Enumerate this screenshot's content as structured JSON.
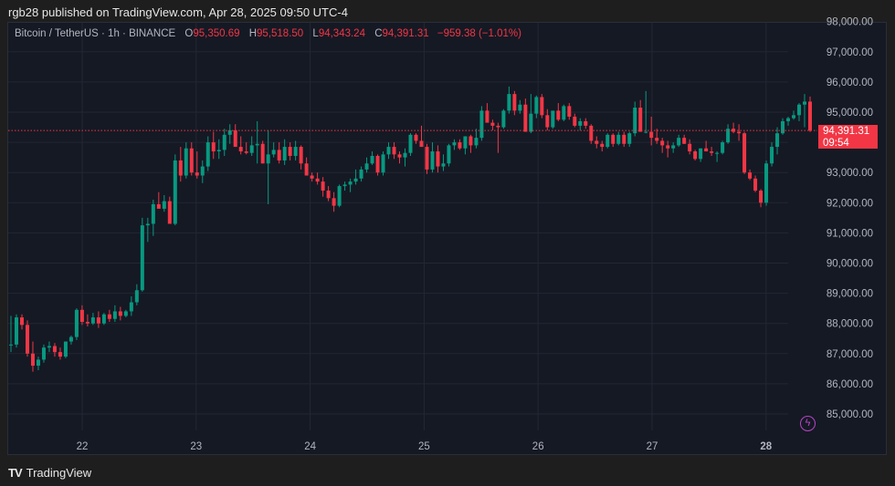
{
  "header": {
    "published_text": "rgb28 published on TradingView.com, Apr 28, 2025 09:50 UTC-4"
  },
  "legend": {
    "symbol": "Bitcoin / TetherUS · 1h · BINANCE",
    "o_label": "O",
    "o_value": "95,350.69",
    "h_label": "H",
    "h_value": "95,518.50",
    "l_label": "L",
    "l_value": "94,343.24",
    "c_label": "C",
    "c_value": "94,391.31",
    "change": "−959.38 (−1.01%)"
  },
  "price_label": {
    "price": "94,391.31",
    "countdown": "09:54"
  },
  "footer": {
    "logo_glyph": "TV",
    "brand": "TradingView"
  },
  "colors": {
    "up": "#089981",
    "down": "#f23645",
    "background": "#151924",
    "grid": "#232733",
    "text": "#b2b5be",
    "alert_icon": "#b845c8"
  },
  "icons": {
    "alert": "lightning-bolt-icon"
  },
  "chart_data": {
    "type": "candlestick",
    "title": "Bitcoin / TetherUS · 1h · BINANCE",
    "xlabel": "",
    "ylabel": "",
    "x_ticks": [
      "22",
      "23",
      "24",
      "25",
      "26",
      "27",
      "28"
    ],
    "y_ticks": [
      "85,000.00",
      "86,000.00",
      "87,000.00",
      "88,000.00",
      "89,000.00",
      "90,000.00",
      "91,000.00",
      "92,000.00",
      "93,000.00",
      "94,000.00",
      "95,000.00",
      "96,000.00",
      "97,000.00",
      "98,000.00"
    ],
    "ylim": [
      84100,
      98100
    ],
    "grid": true,
    "last_price": 94391.31,
    "interval": "1h",
    "candles_ohlc_approx": [
      [
        87300,
        88250,
        87050,
        87300
      ],
      [
        87300,
        88300,
        87200,
        88200
      ],
      [
        88200,
        88300,
        87800,
        87950
      ],
      [
        87950,
        88100,
        86900,
        87000
      ],
      [
        87000,
        87400,
        86400,
        86600
      ],
      [
        86600,
        86900,
        86450,
        86800
      ],
      [
        86800,
        87300,
        86700,
        87200
      ],
      [
        87200,
        87400,
        87050,
        87250
      ],
      [
        87250,
        87350,
        86900,
        87050
      ],
      [
        87050,
        87200,
        86800,
        86900
      ],
      [
        86900,
        87400,
        86850,
        87400
      ],
      [
        87400,
        87600,
        87300,
        87550
      ],
      [
        87550,
        88500,
        87450,
        88450
      ],
      [
        88450,
        88600,
        87950,
        88050
      ],
      [
        88050,
        88300,
        87900,
        88000
      ],
      [
        88000,
        88350,
        87950,
        88200
      ],
      [
        88200,
        88400,
        87850,
        88000
      ],
      [
        88000,
        88350,
        87950,
        88300
      ],
      [
        88300,
        88450,
        88050,
        88150
      ],
      [
        88150,
        88600,
        88050,
        88400
      ],
      [
        88400,
        88550,
        88100,
        88250
      ],
      [
        88250,
        88450,
        88200,
        88400
      ],
      [
        88400,
        88900,
        88250,
        88700
      ],
      [
        88700,
        89300,
        88600,
        89100
      ],
      [
        89100,
        91500,
        89050,
        91250
      ],
      [
        91250,
        91500,
        90700,
        91300
      ],
      [
        91300,
        92100,
        90900,
        91950
      ],
      [
        91950,
        92350,
        91800,
        91800
      ],
      [
        91800,
        92250,
        91700,
        92050
      ],
      [
        92050,
        92200,
        91450,
        91300
      ],
      [
        91300,
        93600,
        91250,
        93400
      ],
      [
        93400,
        93850,
        92700,
        92900
      ],
      [
        92900,
        94000,
        92800,
        93800
      ],
      [
        93800,
        94000,
        92900,
        93000
      ],
      [
        93000,
        93700,
        92800,
        92900
      ],
      [
        92900,
        93400,
        92650,
        93200
      ],
      [
        93200,
        94200,
        93050,
        94000
      ],
      [
        94000,
        94350,
        93450,
        93700
      ],
      [
        93700,
        94100,
        93450,
        93750
      ],
      [
        93750,
        94450,
        93550,
        94250
      ],
      [
        94250,
        94600,
        93950,
        94400
      ],
      [
        94400,
        94600,
        93850,
        93850
      ],
      [
        93850,
        94200,
        93600,
        93700
      ],
      [
        93700,
        94000,
        93600,
        93650
      ],
      [
        93650,
        94200,
        93550,
        93900
      ],
      [
        93900,
        94700,
        93300,
        93950
      ],
      [
        93950,
        94050,
        93300,
        93300
      ],
      [
        93300,
        94400,
        91950,
        93600
      ],
      [
        93600,
        94000,
        93500,
        93750
      ],
      [
        93750,
        94000,
        93300,
        93400
      ],
      [
        93400,
        94100,
        93250,
        93850
      ],
      [
        93850,
        94000,
        93400,
        93550
      ],
      [
        93550,
        94050,
        93400,
        93850
      ],
      [
        93850,
        93900,
        93100,
        93300
      ],
      [
        93300,
        93500,
        92900,
        92900
      ],
      [
        92900,
        93000,
        92700,
        92800
      ],
      [
        92800,
        93000,
        92600,
        92700
      ],
      [
        92700,
        92850,
        92200,
        92400
      ],
      [
        92400,
        92550,
        92050,
        92150
      ],
      [
        92150,
        92350,
        91700,
        91900
      ],
      [
        91900,
        92600,
        91850,
        92550
      ],
      [
        92550,
        92700,
        92400,
        92600
      ],
      [
        92600,
        92800,
        92350,
        92700
      ],
      [
        92700,
        93100,
        92600,
        92800
      ],
      [
        92800,
        93200,
        92700,
        93100
      ],
      [
        93100,
        93500,
        93000,
        93300
      ],
      [
        93300,
        93700,
        93250,
        93550
      ],
      [
        93550,
        93600,
        92900,
        93000
      ],
      [
        93000,
        93700,
        92900,
        93600
      ],
      [
        93600,
        94000,
        93450,
        93850
      ],
      [
        93850,
        94000,
        93450,
        93600
      ],
      [
        93600,
        93700,
        93300,
        93500
      ],
      [
        93500,
        93800,
        93200,
        93650
      ],
      [
        93650,
        94300,
        93550,
        94250
      ],
      [
        94250,
        94300,
        93950,
        94050
      ],
      [
        94050,
        94550,
        93850,
        93850
      ],
      [
        93850,
        93950,
        92950,
        93100
      ],
      [
        93100,
        94000,
        93000,
        93700
      ],
      [
        93700,
        93900,
        93000,
        93200
      ],
      [
        93200,
        93600,
        93050,
        93300
      ],
      [
        93300,
        93950,
        93200,
        93900
      ],
      [
        93900,
        94100,
        93750,
        94000
      ],
      [
        94000,
        94100,
        93750,
        93800
      ],
      [
        93800,
        94200,
        93600,
        94200
      ],
      [
        94200,
        94250,
        93650,
        93900
      ],
      [
        93900,
        94450,
        93800,
        94150
      ],
      [
        94150,
        95200,
        94050,
        95050
      ],
      [
        95050,
        95300,
        94700,
        94650
      ],
      [
        94650,
        94750,
        94400,
        94550
      ],
      [
        94550,
        94650,
        93650,
        94500
      ],
      [
        94500,
        95100,
        94450,
        95050
      ],
      [
        95050,
        95850,
        94950,
        95600
      ],
      [
        95600,
        95700,
        94900,
        95050
      ],
      [
        95050,
        95400,
        94950,
        95250
      ],
      [
        95250,
        95450,
        94350,
        94350
      ],
      [
        94350,
        95600,
        94300,
        94950
      ],
      [
        94950,
        95550,
        94800,
        95500
      ],
      [
        95500,
        95600,
        94800,
        94900
      ],
      [
        94900,
        95100,
        94400,
        94500
      ],
      [
        94500,
        95000,
        94450,
        95050
      ],
      [
        95050,
        95300,
        94700,
        94750
      ],
      [
        94750,
        95250,
        94700,
        95200
      ],
      [
        95200,
        95300,
        94750,
        94850
      ],
      [
        94850,
        94950,
        94500,
        94550
      ],
      [
        94550,
        94800,
        94400,
        94700
      ],
      [
        94700,
        94800,
        94450,
        94550
      ],
      [
        94550,
        94600,
        93950,
        94050
      ],
      [
        94050,
        94200,
        93800,
        93950
      ],
      [
        93950,
        94050,
        93700,
        93850
      ],
      [
        93850,
        94300,
        93800,
        94250
      ],
      [
        94250,
        94300,
        93850,
        93950
      ],
      [
        93950,
        94350,
        93900,
        94250
      ],
      [
        94250,
        94350,
        93850,
        93950
      ],
      [
        93950,
        94350,
        93850,
        94300
      ],
      [
        94300,
        95350,
        94200,
        95150
      ],
      [
        95150,
        95400,
        94350,
        94350
      ],
      [
        94350,
        95700,
        94300,
        94350
      ],
      [
        94350,
        94850,
        93900,
        94150
      ],
      [
        94150,
        94450,
        93950,
        94050
      ],
      [
        94050,
        94150,
        93650,
        93900
      ],
      [
        93900,
        94050,
        93500,
        93800
      ],
      [
        93800,
        94000,
        93650,
        93900
      ],
      [
        93900,
        94250,
        93850,
        94150
      ],
      [
        94150,
        94250,
        93950,
        93950
      ],
      [
        93950,
        94100,
        93600,
        93700
      ],
      [
        93700,
        93750,
        93400,
        93450
      ],
      [
        93450,
        93800,
        93350,
        93800
      ],
      [
        93800,
        94050,
        93700,
        93700
      ],
      [
        93700,
        93850,
        93550,
        93650
      ],
      [
        93650,
        93700,
        93350,
        93650
      ],
      [
        93650,
        94050,
        93600,
        94000
      ],
      [
        94000,
        94600,
        93950,
        94450
      ],
      [
        94450,
        94650,
        94300,
        94350
      ],
      [
        94350,
        94600,
        94050,
        94300
      ],
      [
        94300,
        94350,
        92950,
        93000
      ],
      [
        93000,
        93100,
        92750,
        92800
      ],
      [
        92800,
        92900,
        92350,
        92400
      ],
      [
        92400,
        92450,
        91850,
        92000
      ],
      [
        92000,
        93400,
        91900,
        93300
      ],
      [
        93300,
        94000,
        93200,
        93850
      ],
      [
        93850,
        94500,
        93600,
        94300
      ],
      [
        94300,
        94800,
        94250,
        94700
      ],
      [
        94700,
        94850,
        94550,
        94800
      ],
      [
        94800,
        95050,
        94750,
        94900
      ],
      [
        94900,
        95300,
        94700,
        95250
      ],
      [
        95250,
        95600,
        94500,
        95350
      ],
      [
        95350,
        95518,
        94343,
        94391
      ]
    ]
  }
}
